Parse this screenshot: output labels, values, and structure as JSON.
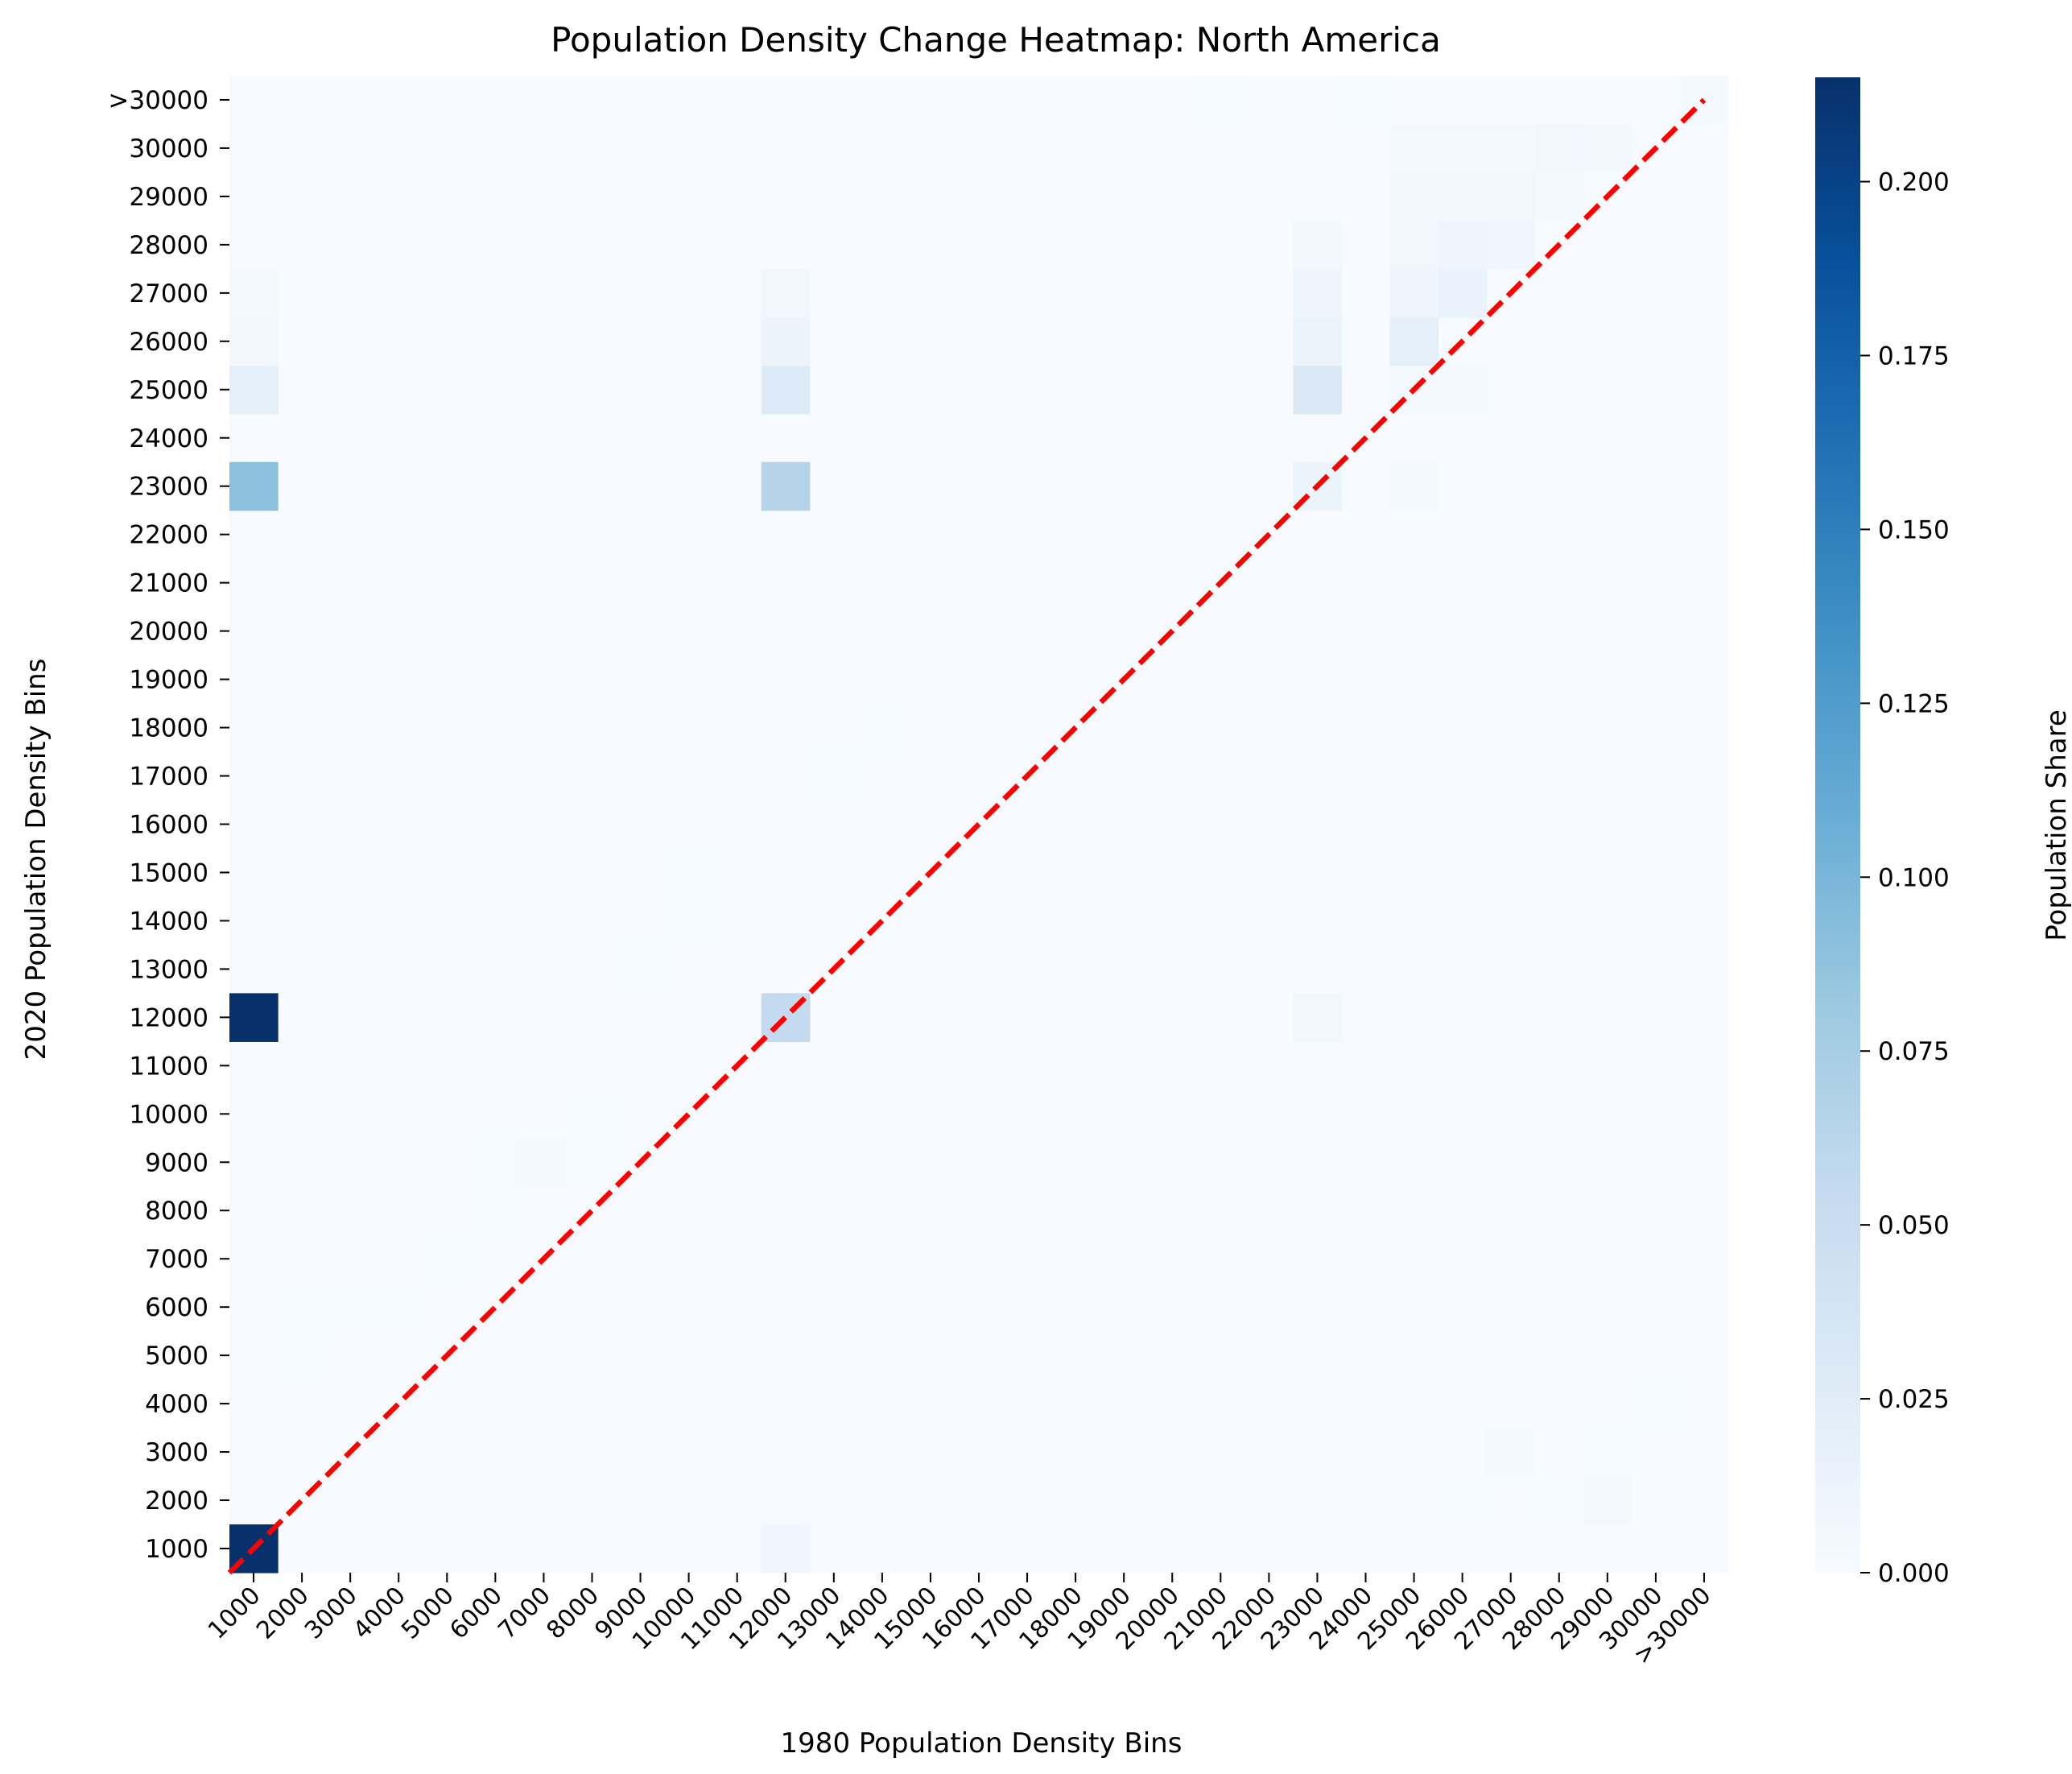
{
  "chart_data": {
    "type": "heatmap",
    "title": "Population Density Change Heatmap: North America",
    "xlabel": "1980 Population Density Bins",
    "ylabel": "2020 Population Density Bins",
    "x_categories": [
      "1000",
      "2000",
      "3000",
      "4000",
      "5000",
      "6000",
      "7000",
      "8000",
      "9000",
      "10000",
      "11000",
      "12000",
      "13000",
      "14000",
      "15000",
      "16000",
      "17000",
      "18000",
      "19000",
      "20000",
      "21000",
      "22000",
      "23000",
      "24000",
      "25000",
      "26000",
      "27000",
      "28000",
      "29000",
      "30000",
      ">30000"
    ],
    "y_categories": [
      "1000",
      "2000",
      "3000",
      "4000",
      "5000",
      "6000",
      "7000",
      "8000",
      "9000",
      "10000",
      "11000",
      "12000",
      "13000",
      "14000",
      "15000",
      "16000",
      "17000",
      "18000",
      "19000",
      "20000",
      "21000",
      "22000",
      "23000",
      "24000",
      "25000",
      "26000",
      "27000",
      "28000",
      "29000",
      "30000",
      ">30000"
    ],
    "colorbar": {
      "label": "Population Share",
      "vmin": 0.0,
      "vmax": 0.215,
      "ticks": [
        "0.000",
        "0.025",
        "0.050",
        "0.075",
        "0.100",
        "0.125",
        "0.150",
        "0.175",
        "0.200"
      ],
      "colormap": "Blues"
    },
    "grid": false,
    "diagonal_reference_line": {
      "style": "dashed",
      "color": "#ff0000"
    },
    "cells": [
      {
        "x": "1000",
        "y": "1000",
        "value": 0.215
      },
      {
        "x": "1000",
        "y": "12000",
        "value": 0.215
      },
      {
        "x": "1000",
        "y": "23000",
        "value": 0.09
      },
      {
        "x": "1000",
        "y": "25000",
        "value": 0.02
      },
      {
        "x": "1000",
        "y": "26000",
        "value": 0.005
      },
      {
        "x": "1000",
        "y": "27000",
        "value": 0.004
      },
      {
        "x": "12000",
        "y": "1000",
        "value": 0.008
      },
      {
        "x": "12000",
        "y": "12000",
        "value": 0.055
      },
      {
        "x": "12000",
        "y": "23000",
        "value": 0.065
      },
      {
        "x": "12000",
        "y": "25000",
        "value": 0.028
      },
      {
        "x": "12000",
        "y": "26000",
        "value": 0.013
      },
      {
        "x": "12000",
        "y": "27000",
        "value": 0.006
      },
      {
        "x": "23000",
        "y": "12000",
        "value": 0.006
      },
      {
        "x": "23000",
        "y": "23000",
        "value": 0.012
      },
      {
        "x": "23000",
        "y": "25000",
        "value": 0.03
      },
      {
        "x": "23000",
        "y": "26000",
        "value": 0.012
      },
      {
        "x": "23000",
        "y": "27000",
        "value": 0.01
      },
      {
        "x": "23000",
        "y": "28000",
        "value": 0.005
      },
      {
        "x": "25000",
        "y": "23000",
        "value": 0.003
      },
      {
        "x": "25000",
        "y": "25000",
        "value": 0.004
      },
      {
        "x": "25000",
        "y": "26000",
        "value": 0.02
      },
      {
        "x": "25000",
        "y": "27000",
        "value": 0.01
      },
      {
        "x": "25000",
        "y": "28000",
        "value": 0.006
      },
      {
        "x": "25000",
        "y": "29000",
        "value": 0.005
      },
      {
        "x": "25000",
        "y": "30000",
        "value": 0.004
      },
      {
        "x": "26000",
        "y": "25000",
        "value": 0.003
      },
      {
        "x": "26000",
        "y": "27000",
        "value": 0.014
      },
      {
        "x": "26000",
        "y": "28000",
        "value": 0.01
      },
      {
        "x": "26000",
        "y": "29000",
        "value": 0.006
      },
      {
        "x": "26000",
        "y": "30000",
        "value": 0.004
      },
      {
        "x": "27000",
        "y": "28000",
        "value": 0.008
      },
      {
        "x": "27000",
        "y": "29000",
        "value": 0.007
      },
      {
        "x": "27000",
        "y": "30000",
        "value": 0.004
      },
      {
        "x": "28000",
        "y": "29000",
        "value": 0.004
      },
      {
        "x": "28000",
        "y": "30000",
        "value": 0.006
      },
      {
        "x": "29000",
        "y": "30000",
        "value": 0.005
      },
      {
        "x": ">30000",
        "y": ">30000",
        "value": 0.004
      },
      {
        "x": "21000",
        "y": ">30000",
        "value": 0.002
      },
      {
        "x": "24000",
        "y": ">30000",
        "value": 0.002
      },
      {
        "x": "26000",
        "y": "2000",
        "value": 0.002
      },
      {
        "x": "28000",
        "y": "2000",
        "value": 0.002
      },
      {
        "x": "29000",
        "y": "2000",
        "value": 0.003
      },
      {
        "x": "27000",
        "y": "3000",
        "value": 0.003
      },
      {
        "x": "29000",
        "y": "3000",
        "value": 0.002
      },
      {
        "x": "30000",
        "y": "4000",
        "value": 0.002
      },
      {
        "x": "2000",
        "y": "5000",
        "value": 0.002
      },
      {
        "x": "2000",
        "y": "6000",
        "value": 0.002
      },
      {
        "x": "3000",
        "y": "6000",
        "value": 0.002
      },
      {
        "x": "4000",
        "y": "6000",
        "value": 0.002
      },
      {
        "x": "5000",
        "y": "7000",
        "value": 0.002
      },
      {
        "x": "6000",
        "y": "8000",
        "value": 0.002
      },
      {
        "x": "6000",
        "y": "9000",
        "value": 0.002
      },
      {
        "x": "7000",
        "y": "9000",
        "value": 0.003
      },
      {
        "x": "8000",
        "y": "9000",
        "value": 0.002
      },
      {
        "x": "8000",
        "y": "10000",
        "value": 0.002
      },
      {
        "x": "9000",
        "y": "13000",
        "value": 0.002
      },
      {
        "x": "10000",
        "y": "14000",
        "value": 0.002
      },
      {
        "x": "10000",
        "y": "15000",
        "value": 0.002
      },
      {
        "x": "13000",
        "y": "17000",
        "value": 0.002
      },
      {
        "x": "14000",
        "y": "18000",
        "value": 0.002
      }
    ]
  }
}
